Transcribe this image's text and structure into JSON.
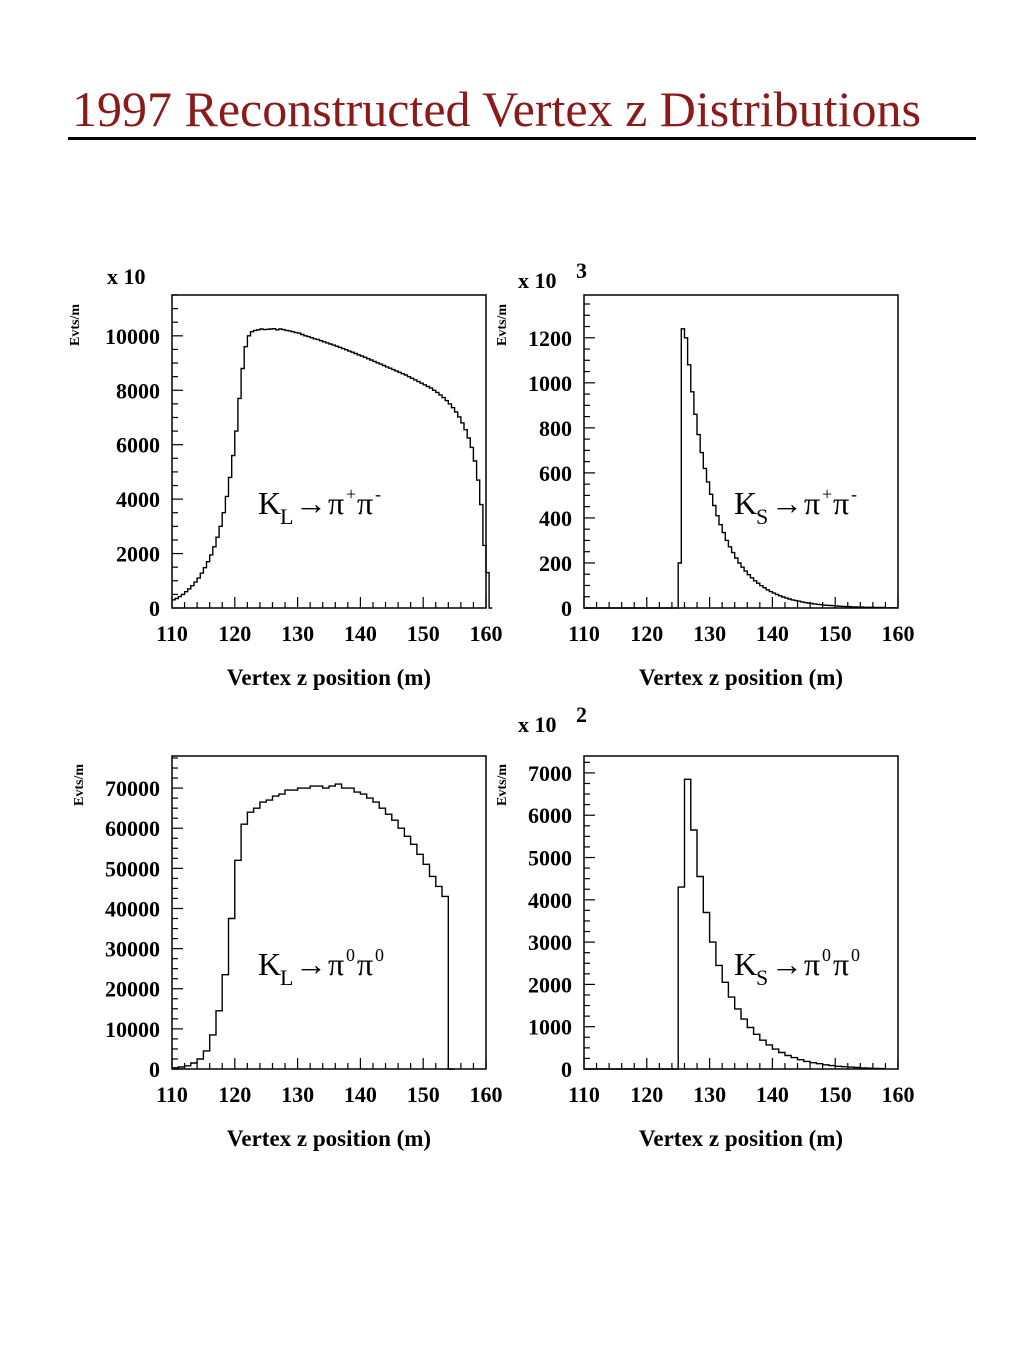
{
  "page": {
    "title": "1997 Reconstructed Vertex z Distributions",
    "title_color": "#8b1a1a"
  },
  "chart_data": [
    {
      "type": "histogram",
      "process": {
        "main": "K",
        "sub": "L",
        "arrow": "→",
        "p1": "π",
        "p1_sup": "+",
        "p2": "π",
        "p2_sup": "-"
      },
      "multiplier": "x 10",
      "ylabel": "Evts/m",
      "xlabel": "Vertex z position (m)",
      "xlim": [
        110,
        160
      ],
      "ylim": [
        0,
        11500
      ],
      "x_ticks": [
        "110",
        "120",
        "130",
        "140",
        "150",
        "160"
      ],
      "y_ticks": [
        {
          "value": 0,
          "label": "0"
        },
        {
          "value": 2000,
          "label": "2000"
        },
        {
          "value": 4000,
          "label": "4000"
        },
        {
          "value": 6000,
          "label": "6000"
        },
        {
          "value": 8000,
          "label": "8000"
        },
        {
          "value": 10000,
          "label": "10000"
        }
      ],
      "bin_start": 110,
      "bin_width": 0.5,
      "values": [
        300,
        350,
        420,
        500,
        600,
        700,
        820,
        950,
        1100,
        1280,
        1480,
        1700,
        1950,
        2250,
        2600,
        3000,
        3500,
        4100,
        4800,
        5600,
        6500,
        7700,
        8800,
        9600,
        10000,
        10150,
        10200,
        10220,
        10250,
        10230,
        10240,
        10250,
        10260,
        10220,
        10250,
        10230,
        10200,
        10180,
        10150,
        10120,
        10100,
        10050,
        10000,
        9970,
        9930,
        9890,
        9860,
        9820,
        9780,
        9740,
        9700,
        9660,
        9620,
        9580,
        9530,
        9490,
        9440,
        9400,
        9350,
        9300,
        9260,
        9210,
        9160,
        9110,
        9060,
        9010,
        8960,
        8910,
        8860,
        8810,
        8760,
        8710,
        8660,
        8610,
        8560,
        8500,
        8440,
        8380,
        8320,
        8260,
        8200,
        8140,
        8080,
        8000,
        7920,
        7830,
        7730,
        7620,
        7500,
        7360,
        7200,
        7020,
        6800,
        6550,
        6250,
        5900,
        5400,
        4700,
        3800,
        2300,
        1300,
        0
      ]
    },
    {
      "type": "histogram",
      "process": {
        "main": "K",
        "sub": "S",
        "arrow": "→",
        "p1": "π",
        "p1_sup": "+",
        "p2": "π",
        "p2_sup": "-"
      },
      "multiplier": "x 10",
      "multiplier_exp": "3",
      "ylabel": "Evts/m",
      "xlabel": "Vertex z position (m)",
      "xlim": [
        110,
        160
      ],
      "ylim": [
        0,
        1390
      ],
      "x_ticks": [
        "110",
        "120",
        "130",
        "140",
        "150",
        "160"
      ],
      "y_ticks": [
        {
          "value": 0,
          "label": "0"
        },
        {
          "value": 200,
          "label": "200"
        },
        {
          "value": 400,
          "label": "400"
        },
        {
          "value": 600,
          "label": "600"
        },
        {
          "value": 800,
          "label": "800"
        },
        {
          "value": 1000,
          "label": "1000"
        },
        {
          "value": 1200,
          "label": "1200"
        }
      ],
      "bin_start": 110,
      "bin_width": 0.5,
      "values": [
        0,
        0,
        0,
        0,
        0,
        0,
        0,
        0,
        0,
        0,
        0,
        0,
        0,
        0,
        0,
        0,
        0,
        0,
        0,
        0,
        0,
        0,
        0,
        0,
        0,
        0,
        0,
        0,
        0,
        0,
        200,
        1240,
        1200,
        1080,
        960,
        860,
        770,
        690,
        620,
        560,
        505,
        455,
        410,
        370,
        335,
        300,
        272,
        246,
        222,
        200,
        181,
        164,
        148,
        134,
        121,
        110,
        99,
        90,
        81,
        73,
        66,
        60,
        54,
        49,
        44,
        40,
        36,
        33,
        30,
        27,
        24,
        22,
        20,
        18,
        16,
        15,
        13,
        12,
        11,
        10,
        9,
        8,
        7,
        6,
        6,
        5,
        5,
        4,
        4,
        3,
        3,
        3,
        2,
        2,
        2,
        2,
        1,
        1,
        1,
        1
      ]
    },
    {
      "type": "histogram",
      "process": {
        "main": "K",
        "sub": "L",
        "arrow": "→",
        "p1": "π",
        "p1_sup": "0",
        "p2": "π",
        "p2_sup": "0"
      },
      "multiplier": "",
      "ylabel": "Evts/m",
      "xlabel": "Vertex z position (m)",
      "xlim": [
        110,
        160
      ],
      "ylim": [
        0,
        78000
      ],
      "x_ticks": [
        "110",
        "120",
        "130",
        "140",
        "150",
        "160"
      ],
      "y_ticks": [
        {
          "value": 0,
          "label": "0"
        },
        {
          "value": 10000,
          "label": "10000"
        },
        {
          "value": 20000,
          "label": "20000"
        },
        {
          "value": 30000,
          "label": "30000"
        },
        {
          "value": 40000,
          "label": "40000"
        },
        {
          "value": 50000,
          "label": "50000"
        },
        {
          "value": 60000,
          "label": "60000"
        },
        {
          "value": 70000,
          "label": "70000"
        }
      ],
      "bin_start": 110,
      "bin_width": 1,
      "values": [
        300,
        500,
        800,
        1500,
        2500,
        4500,
        8500,
        14500,
        23500,
        37500,
        52000,
        61000,
        64000,
        65000,
        66500,
        67000,
        68000,
        68500,
        69500,
        69500,
        70000,
        70000,
        70500,
        70500,
        70000,
        70500,
        71000,
        70000,
        70000,
        69000,
        68500,
        67500,
        66500,
        65000,
        63500,
        62000,
        60000,
        58000,
        56000,
        53500,
        51000,
        48000,
        45500,
        43000,
        0
      ]
    },
    {
      "type": "histogram",
      "process": {
        "main": "K",
        "sub": "S",
        "arrow": "→",
        "p1": "π",
        "p1_sup": "0",
        "p2": "π",
        "p2_sup": "0"
      },
      "multiplier": "x 10",
      "multiplier_exp": "2",
      "ylabel": "Evts/m",
      "xlabel": "Vertex z position (m)",
      "xlim": [
        110,
        160
      ],
      "ylim": [
        0,
        7400
      ],
      "x_ticks": [
        "110",
        "120",
        "130",
        "140",
        "150",
        "160"
      ],
      "y_ticks": [
        {
          "value": 0,
          "label": "0"
        },
        {
          "value": 1000,
          "label": "1000"
        },
        {
          "value": 2000,
          "label": "2000"
        },
        {
          "value": 3000,
          "label": "3000"
        },
        {
          "value": 4000,
          "label": "4000"
        },
        {
          "value": 5000,
          "label": "5000"
        },
        {
          "value": 6000,
          "label": "6000"
        },
        {
          "value": 7000,
          "label": "7000"
        }
      ],
      "bin_start": 110,
      "bin_width": 1,
      "values": [
        0,
        0,
        0,
        0,
        0,
        0,
        0,
        0,
        0,
        0,
        0,
        0,
        0,
        0,
        0,
        4300,
        6850,
        5650,
        4550,
        3700,
        3000,
        2450,
        2050,
        1700,
        1420,
        1180,
        980,
        820,
        680,
        570,
        470,
        390,
        320,
        270,
        220,
        180,
        150,
        125,
        100,
        80,
        65,
        55,
        45,
        35,
        25,
        20,
        15,
        10
      ]
    }
  ]
}
